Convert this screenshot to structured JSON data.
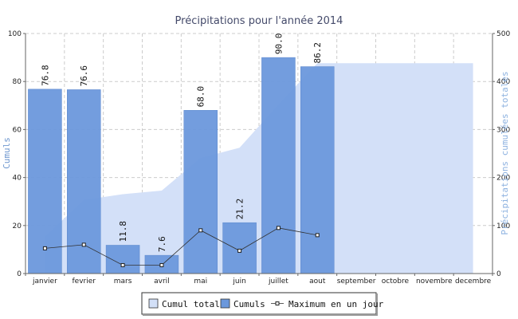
{
  "chart_data": {
    "type": "bar",
    "title": "Précipitations pour l'année 2014",
    "ylabel": "Cumuls",
    "y2label": "Précipitations cumulées totales",
    "ylim": [
      0,
      100
    ],
    "y2lim": [
      0,
      500
    ],
    "yticks": [
      0,
      20,
      40,
      60,
      80,
      100
    ],
    "y2ticks": [
      0,
      100,
      200,
      300,
      400,
      500
    ],
    "grid": true,
    "legend_position": "bottom-center",
    "categories": [
      "janvier",
      "fevrier",
      "mars",
      "avril",
      "mai",
      "juin",
      "juillet",
      "aout",
      "september",
      "octobre",
      "novembre",
      "decembre"
    ],
    "series": [
      {
        "name": "Cumul total",
        "type": "area",
        "axis": "right",
        "color": "#d3e0f8",
        "values": [
          76.8,
          153.4,
          165.2,
          172.8,
          240.8,
          262.0,
          352.0,
          438.2,
          438.2,
          438.2,
          438.2,
          438.2
        ]
      },
      {
        "name": "Cumuls",
        "type": "bar",
        "axis": "left",
        "color": "#6b98dc",
        "values": [
          76.8,
          76.6,
          11.8,
          7.6,
          68.0,
          21.2,
          90.0,
          86.2,
          null,
          null,
          null,
          null
        ],
        "labels": [
          "76.8",
          "76.6",
          "11.8",
          "7.6",
          "68.0",
          "21.2",
          "90.0",
          "86.2",
          "",
          "",
          "",
          ""
        ]
      },
      {
        "name": "Maximum en un jour",
        "type": "line",
        "axis": "left",
        "color": "#333333",
        "values": [
          10.5,
          12.0,
          3.5,
          3.5,
          18.0,
          9.5,
          19.0,
          16.0,
          null,
          null,
          null,
          null
        ]
      }
    ]
  }
}
